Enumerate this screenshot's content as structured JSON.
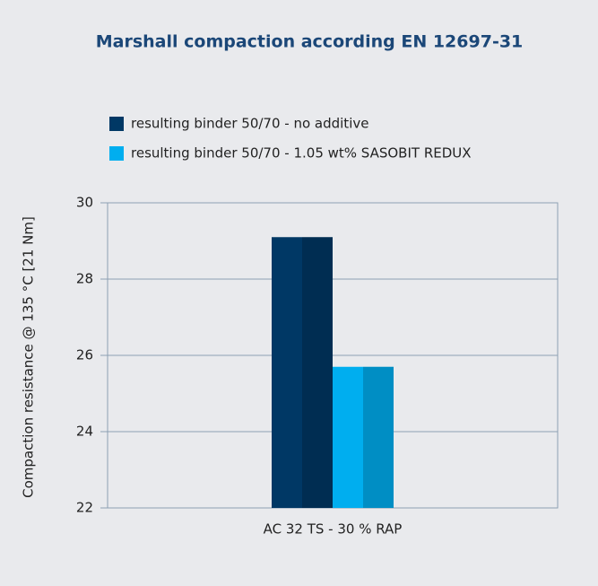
{
  "chart_data": {
    "type": "bar",
    "title": "Marshall compaction according EN 12697-31",
    "y_label": "Compaction resistance @ 135 °C [21 Nm]",
    "categories": [
      "AC 32 TS - 30 % RAP"
    ],
    "series": [
      {
        "name": "resulting binder 50/70 - no additive",
        "color": "#003865",
        "values": [
          29.1
        ]
      },
      {
        "name": "resulting binder 50/70 - 1.05 wt% SASOBIT REDUX",
        "color": "#00aeef",
        "values": [
          25.7
        ]
      }
    ],
    "ylim": [
      22,
      30
    ],
    "yticks": [
      22,
      24,
      26,
      28,
      30
    ],
    "grid": true,
    "legend": "top"
  }
}
